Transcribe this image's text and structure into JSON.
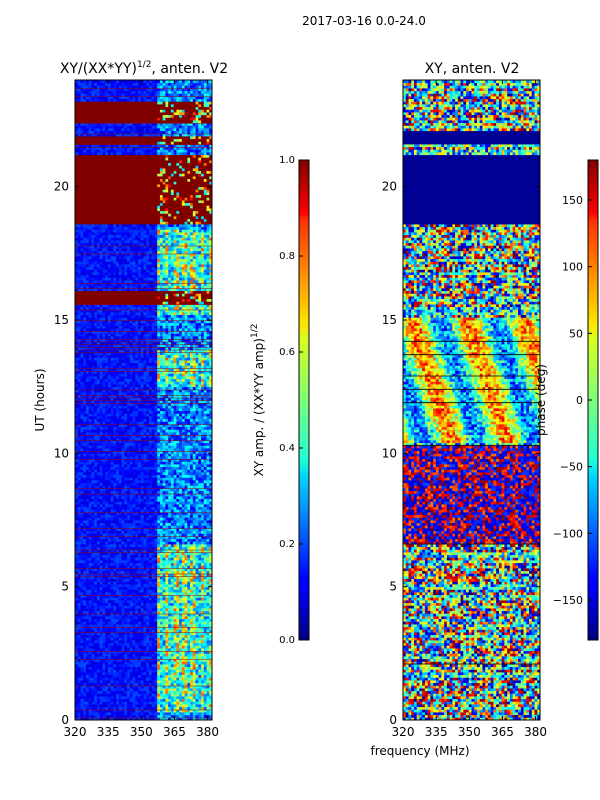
{
  "figure": {
    "suptitle": "2017-03-16 0.0-24.0",
    "shared_xlabel": "frequency (MHz)"
  },
  "chart_data": [
    {
      "type": "heatmap",
      "title": "XY/(XX*YY)^{1/2}, anten. V2",
      "title_main": "XY/(XX*YY)",
      "title_exp": "1/2",
      "title_tail": ", anten. V2",
      "xlabel": "",
      "ylabel": "UT (hours)",
      "xlim": [
        320,
        382
      ],
      "ylim": [
        0,
        24
      ],
      "xticks": [
        320,
        335,
        350,
        365,
        380
      ],
      "yticks": [
        0,
        5,
        10,
        15,
        20
      ],
      "colorbar": {
        "label_main": "XY amp. / (XX*YY amp)",
        "label_exp": "1/2",
        "range": [
          0.0,
          1.0
        ],
        "ticks": [
          "0.0",
          "0.2",
          "0.4",
          "0.6",
          "0.8",
          "1.0"
        ],
        "colormap": "jet"
      },
      "features": {
        "saturated_hours": [
          [
            18.6,
            21.2
          ],
          [
            21.6,
            21.9
          ],
          [
            22.4,
            23.1
          ],
          [
            15.6,
            16.0
          ]
        ],
        "band_freqs": [
          [
            356,
            382
          ]
        ],
        "active_hours": [
          [
            0.3,
            6.6
          ],
          [
            12.5,
            13.8
          ],
          [
            15.2,
            18.4
          ]
        ]
      }
    },
    {
      "type": "heatmap",
      "title": "XY, anten. V2",
      "xlabel": "",
      "ylabel": "",
      "xlim": [
        320,
        382
      ],
      "ylim": [
        0,
        24
      ],
      "xticks": [
        320,
        335,
        350,
        365,
        380
      ],
      "yticks": [
        0,
        5,
        10,
        15,
        20
      ],
      "colorbar": {
        "label": "phase (deg)",
        "range": [
          -180,
          180
        ],
        "ticks": [
          "150",
          "100",
          "50",
          "0",
          "−50",
          "−100",
          "−150"
        ],
        "tick_values": [
          150,
          100,
          50,
          0,
          -50,
          -100,
          -150
        ],
        "colormap": "jet"
      },
      "features": {
        "flat_hours": [
          [
            18.6,
            21.2
          ],
          [
            21.6,
            22.0
          ]
        ],
        "noisy_hours": [
          [
            0.0,
            18.4
          ],
          [
            22.0,
            24.0
          ]
        ]
      }
    }
  ],
  "colors": {
    "jet_dark_red": "#800000",
    "jet_dark_blue": "#00007f"
  }
}
